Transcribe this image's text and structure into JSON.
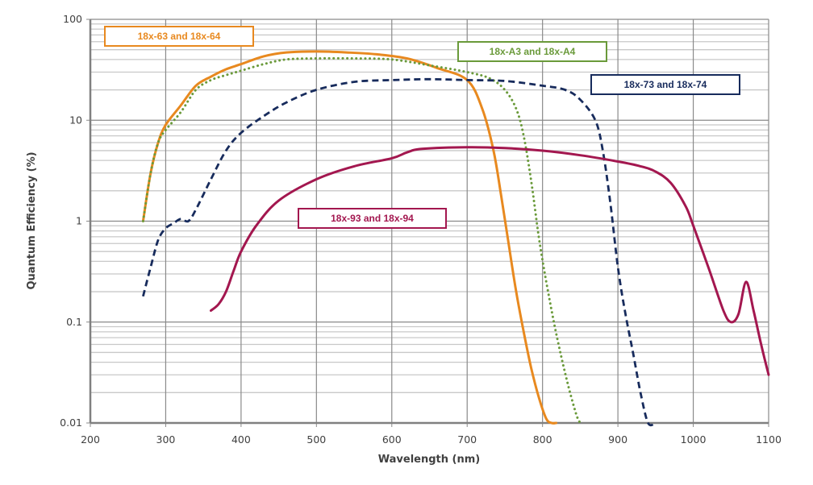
{
  "chart_data": {
    "type": "line",
    "title": "",
    "xlabel": "Wavelength (nm)",
    "ylabel": "Quantum Efficiency (%)",
    "xlim": [
      200,
      1100
    ],
    "ylim": [
      0.01,
      100
    ],
    "yscale": "log",
    "grid": true,
    "x_ticks": [
      "200",
      "300",
      "400",
      "500",
      "600",
      "700",
      "800",
      "900",
      "1000",
      "1100"
    ],
    "x_tick_values": [
      200,
      300,
      400,
      500,
      600,
      700,
      800,
      900,
      1000,
      1100
    ],
    "y_ticks": [
      "0.01",
      "0.1",
      "1",
      "10",
      "100"
    ],
    "y_tick_values": [
      0.01,
      0.1,
      1,
      10,
      100
    ],
    "series": [
      {
        "name": "18x-63 and 18x-64",
        "color": "#E8891F",
        "style": "solid",
        "label_position": "top-left",
        "x": [
          270,
          280,
          290,
          300,
          320,
          340,
          360,
          380,
          400,
          430,
          460,
          500,
          540,
          580,
          620,
          660,
          700,
          720,
          735,
          745,
          755,
          765,
          775,
          785,
          795,
          805,
          812,
          818
        ],
        "y": [
          1.0,
          3.0,
          6.0,
          9.0,
          14,
          22,
          27,
          32,
          36,
          43,
          47,
          48,
          47,
          45,
          41,
          33,
          25,
          13,
          5,
          1.8,
          0.6,
          0.2,
          0.08,
          0.035,
          0.018,
          0.011,
          0.01,
          0.01
        ]
      },
      {
        "name": "18x-A3 and 18x-A4",
        "color": "#6A9A3A",
        "style": "dotted",
        "label_position": "top-center",
        "x": [
          270,
          280,
          290,
          300,
          320,
          340,
          360,
          380,
          400,
          430,
          460,
          500,
          550,
          600,
          650,
          700,
          730,
          750,
          765,
          775,
          785,
          795,
          805,
          815,
          825,
          835,
          845,
          850
        ],
        "y": [
          1.0,
          3.0,
          6.0,
          8.0,
          12,
          20,
          25,
          28,
          31,
          36,
          40,
          41,
          41,
          40,
          35,
          30,
          26,
          20,
          13,
          7,
          2.5,
          0.7,
          0.25,
          0.1,
          0.045,
          0.022,
          0.012,
          0.01
        ]
      },
      {
        "name": "18x-73 and 18x-74",
        "color": "#172B5C",
        "style": "dashed",
        "label_position": "top-right",
        "x": [
          270,
          280,
          290,
          300,
          310,
          320,
          330,
          340,
          360,
          380,
          400,
          430,
          460,
          500,
          550,
          600,
          650,
          700,
          750,
          800,
          830,
          850,
          870,
          880,
          890,
          900,
          910,
          920,
          930,
          940,
          950
        ],
        "y": [
          0.18,
          0.35,
          0.65,
          0.85,
          0.95,
          1.05,
          1.0,
          1.3,
          2.6,
          5.0,
          7.5,
          11,
          15,
          20,
          24,
          25,
          25.5,
          25,
          24.5,
          22,
          20,
          16,
          10,
          5,
          1.5,
          0.35,
          0.12,
          0.05,
          0.02,
          0.01,
          0.01
        ]
      },
      {
        "name": "18x-93 and 18x-94",
        "color": "#A3174F",
        "style": "solid",
        "label_position": "center-left",
        "x": [
          360,
          370,
          380,
          390,
          400,
          420,
          450,
          500,
          550,
          600,
          620,
          640,
          700,
          750,
          800,
          850,
          900,
          930,
          950,
          970,
          990,
          1000,
          1020,
          1040,
          1050,
          1060,
          1070,
          1080,
          1090,
          1100
        ],
        "y": [
          0.13,
          0.15,
          0.2,
          0.32,
          0.5,
          0.9,
          1.6,
          2.6,
          3.5,
          4.2,
          4.8,
          5.2,
          5.4,
          5.3,
          5.0,
          4.5,
          3.9,
          3.5,
          3.1,
          2.4,
          1.4,
          0.9,
          0.35,
          0.13,
          0.1,
          0.12,
          0.25,
          0.13,
          0.06,
          0.03
        ]
      }
    ]
  }
}
